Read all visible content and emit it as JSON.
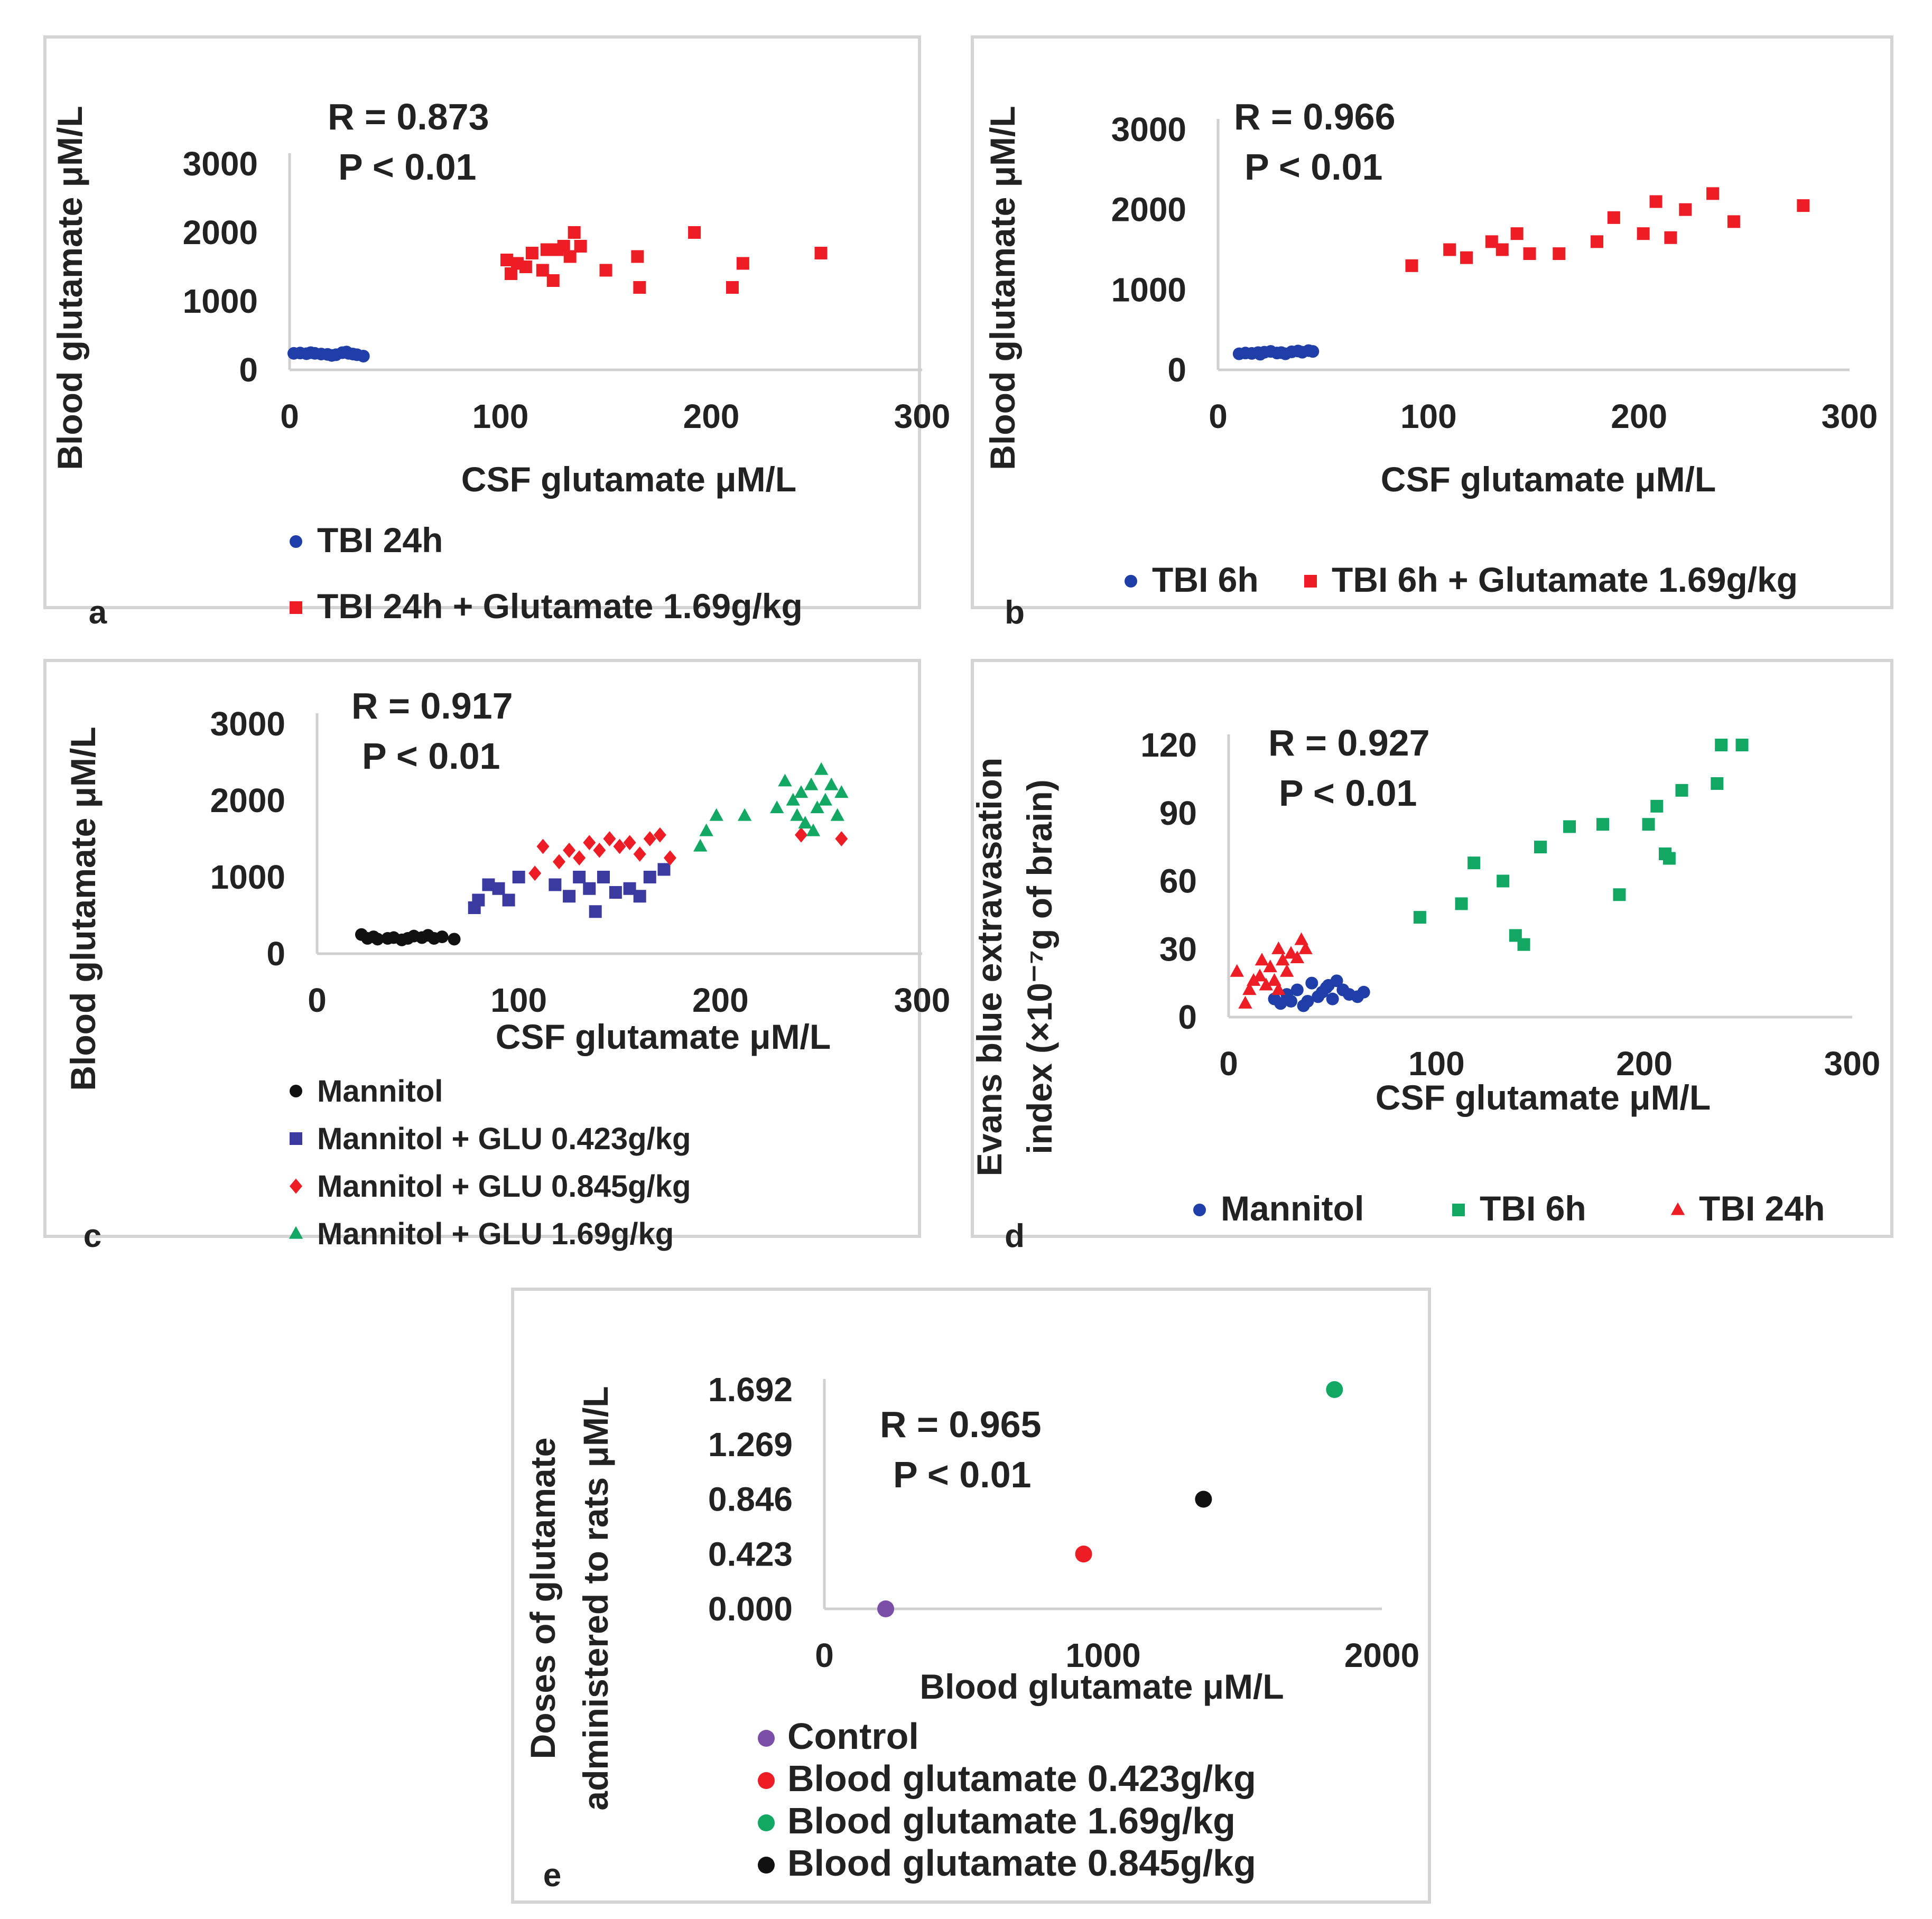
{
  "colors": {
    "blue": "#1f3ea8",
    "red": "#ee1c25",
    "green": "#12a864",
    "black": "#111111",
    "navy": "#3a3aa0",
    "purple": "#7b4fa8"
  },
  "chart_data": [
    {
      "type": "scatter",
      "panel_label": "a",
      "xlabel": "CSF glutamate μM/L",
      "ylabel": "Blood glutamate μM/L",
      "xlim": [
        0,
        300
      ],
      "ylim": [
        0,
        3000
      ],
      "xticks": [
        "0",
        "100",
        "200",
        "300"
      ],
      "yticks": [
        "0",
        "1000",
        "2000",
        "3000"
      ],
      "annotation": [
        "R = 0.873",
        "P < 0.01"
      ],
      "series": [
        {
          "name": "TBI 24h",
          "color": "#1f3ea8",
          "marker": "circle",
          "points": [
            [
              2,
              240
            ],
            [
              5,
              245
            ],
            [
              8,
              235
            ],
            [
              12,
              240
            ],
            [
              15,
              230
            ],
            [
              18,
              225
            ],
            [
              22,
              220
            ],
            [
              25,
              250
            ],
            [
              28,
              240
            ],
            [
              30,
              230
            ],
            [
              32,
              220
            ],
            [
              35,
              200
            ],
            [
              20,
              210
            ],
            [
              10,
              250
            ],
            [
              27,
              260
            ]
          ]
        },
        {
          "name": "TBI 24h + Glutamate 1.69g/kg",
          "color": "#ee1c25",
          "marker": "square",
          "points": [
            [
              103,
              1600
            ],
            [
              105,
              1400
            ],
            [
              108,
              1550
            ],
            [
              112,
              1500
            ],
            [
              115,
              1700
            ],
            [
              120,
              1450
            ],
            [
              122,
              1750
            ],
            [
              125,
              1300
            ],
            [
              127,
              1750
            ],
            [
              130,
              1800
            ],
            [
              133,
              1650
            ],
            [
              135,
              2000
            ],
            [
              138,
              1800
            ],
            [
              150,
              1450
            ],
            [
              165,
              1650
            ],
            [
              166,
              1200
            ],
            [
              192,
              2000
            ],
            [
              210,
              1200
            ],
            [
              215,
              1550
            ],
            [
              252,
              1700
            ]
          ]
        }
      ]
    },
    {
      "type": "scatter",
      "panel_label": "b",
      "xlabel": "CSF glutamate μM/L",
      "ylabel": "Blood glutamate μM/L",
      "xlim": [
        0,
        300
      ],
      "ylim": [
        0,
        3000
      ],
      "xticks": [
        "0",
        "100",
        "200",
        "300"
      ],
      "yticks": [
        "0",
        "1000",
        "2000",
        "3000"
      ],
      "annotation": [
        "R = 0.966",
        "P < 0.01"
      ],
      "series": [
        {
          "name": "TBI 6h",
          "color": "#1f3ea8",
          "marker": "circle",
          "points": [
            [
              10,
              200
            ],
            [
              13,
              210
            ],
            [
              16,
              205
            ],
            [
              19,
              215
            ],
            [
              22,
              220
            ],
            [
              25,
              230
            ],
            [
              28,
              210
            ],
            [
              32,
              200
            ],
            [
              35,
              225
            ],
            [
              38,
              235
            ],
            [
              40,
              220
            ],
            [
              43,
              240
            ],
            [
              45,
              230
            ],
            [
              30,
              215
            ],
            [
              20,
              195
            ]
          ]
        },
        {
          "name": "TBI 6h + Glutamate 1.69g/kg",
          "color": "#ee1c25",
          "marker": "square",
          "points": [
            [
              92,
              1300
            ],
            [
              110,
              1500
            ],
            [
              118,
              1400
            ],
            [
              130,
              1600
            ],
            [
              135,
              1500
            ],
            [
              142,
              1700
            ],
            [
              148,
              1450
            ],
            [
              162,
              1450
            ],
            [
              180,
              1600
            ],
            [
              188,
              1900
            ],
            [
              202,
              1700
            ],
            [
              208,
              2100
            ],
            [
              215,
              1650
            ],
            [
              222,
              2000
            ],
            [
              235,
              2200
            ],
            [
              245,
              1850
            ],
            [
              278,
              2050
            ]
          ]
        }
      ]
    },
    {
      "type": "scatter",
      "panel_label": "c",
      "xlabel": "CSF glutamate μM/L",
      "ylabel": "Blood glutamate μM/L",
      "xlim": [
        0,
        300
      ],
      "ylim": [
        0,
        3000
      ],
      "xticks": [
        "0",
        "100",
        "200",
        "300"
      ],
      "yticks": [
        "0",
        "1000",
        "2000",
        "3000"
      ],
      "annotation": [
        "R = 0.917",
        "P < 0.01"
      ],
      "series": [
        {
          "name": "Mannitol",
          "color": "#111111",
          "marker": "circle",
          "points": [
            [
              22,
              250
            ],
            [
              25,
              200
            ],
            [
              28,
              220
            ],
            [
              30,
              190
            ],
            [
              38,
              210
            ],
            [
              42,
              180
            ],
            [
              45,
              200
            ],
            [
              48,
              230
            ],
            [
              52,
              210
            ],
            [
              55,
              240
            ],
            [
              58,
              200
            ],
            [
              62,
              220
            ],
            [
              68,
              190
            ],
            [
              35,
              200
            ]
          ]
        },
        {
          "name": "Mannitol + GLU 0.423g/kg",
          "color": "#3a3aa0",
          "marker": "square",
          "points": [
            [
              78,
              600
            ],
            [
              80,
              700
            ],
            [
              85,
              900
            ],
            [
              90,
              850
            ],
            [
              95,
              700
            ],
            [
              100,
              1000
            ],
            [
              118,
              900
            ],
            [
              125,
              750
            ],
            [
              130,
              1000
            ],
            [
              135,
              850
            ],
            [
              138,
              550
            ],
            [
              142,
              1000
            ],
            [
              148,
              800
            ],
            [
              155,
              850
            ],
            [
              160,
              750
            ],
            [
              165,
              1000
            ],
            [
              172,
              1100
            ]
          ]
        },
        {
          "name": "Mannitol + GLU 0.845g/kg",
          "color": "#ee1c25",
          "marker": "diamond",
          "points": [
            [
              108,
              1050
            ],
            [
              112,
              1400
            ],
            [
              120,
              1200
            ],
            [
              125,
              1350
            ],
            [
              130,
              1250
            ],
            [
              135,
              1450
            ],
            [
              140,
              1350
            ],
            [
              145,
              1500
            ],
            [
              150,
              1400
            ],
            [
              155,
              1450
            ],
            [
              160,
              1300
            ],
            [
              165,
              1500
            ],
            [
              170,
              1550
            ],
            [
              175,
              1250
            ],
            [
              240,
              1550
            ],
            [
              260,
              1500
            ]
          ]
        },
        {
          "name": "Mannitol + GLU 1.69g/kg",
          "color": "#12a864",
          "marker": "triangle",
          "points": [
            [
              190,
              1400
            ],
            [
              193,
              1600
            ],
            [
              198,
              1800
            ],
            [
              212,
              1800
            ],
            [
              228,
              1900
            ],
            [
              232,
              2250
            ],
            [
              236,
              2000
            ],
            [
              240,
              2100
            ],
            [
              242,
              1700
            ],
            [
              245,
              2200
            ],
            [
              248,
              1900
            ],
            [
              250,
              2400
            ],
            [
              252,
              2000
            ],
            [
              255,
              2200
            ],
            [
              258,
              1800
            ],
            [
              260,
              2100
            ],
            [
              246,
              1600
            ],
            [
              238,
              1800
            ]
          ]
        }
      ]
    },
    {
      "type": "scatter",
      "panel_label": "d",
      "xlabel": "CSF glutamate μM/L",
      "ylabel": [
        "Evans blue extravasation",
        "index (×10⁻⁷g of brain)"
      ],
      "xlim": [
        0,
        300
      ],
      "ylim": [
        0,
        120
      ],
      "xticks": [
        "0",
        "100",
        "200",
        "300"
      ],
      "yticks": [
        "0",
        "30",
        "60",
        "90",
        "120"
      ],
      "annotation": [
        "R = 0.927",
        "P < 0.01"
      ],
      "series": [
        {
          "name": "Mannitol",
          "color": "#1f3ea8",
          "marker": "circle",
          "points": [
            [
              22,
              8
            ],
            [
              25,
              6
            ],
            [
              28,
              10
            ],
            [
              30,
              7
            ],
            [
              33,
              12
            ],
            [
              36,
              5
            ],
            [
              40,
              15
            ],
            [
              43,
              9
            ],
            [
              45,
              11
            ],
            [
              48,
              14
            ],
            [
              50,
              8
            ],
            [
              52,
              16
            ],
            [
              55,
              12
            ],
            [
              58,
              10
            ],
            [
              62,
              9
            ],
            [
              65,
              11
            ],
            [
              47,
              13
            ],
            [
              38,
              7
            ]
          ]
        },
        {
          "name": "TBI 6h",
          "color": "#12a864",
          "marker": "square",
          "points": [
            [
              92,
              44
            ],
            [
              112,
              50
            ],
            [
              118,
              68
            ],
            [
              132,
              60
            ],
            [
              138,
              36
            ],
            [
              142,
              32
            ],
            [
              150,
              75
            ],
            [
              164,
              84
            ],
            [
              180,
              85
            ],
            [
              188,
              54
            ],
            [
              202,
              85
            ],
            [
              206,
              93
            ],
            [
              210,
              72
            ],
            [
              212,
              70
            ],
            [
              218,
              100
            ],
            [
              235,
              103
            ],
            [
              237,
              120
            ],
            [
              247,
              120
            ]
          ]
        },
        {
          "name": "TBI 24h",
          "color": "#ee1c25",
          "marker": "triangle",
          "points": [
            [
              4,
              20
            ],
            [
              8,
              6
            ],
            [
              10,
              12
            ],
            [
              12,
              16
            ],
            [
              15,
              18
            ],
            [
              18,
              14
            ],
            [
              20,
              22
            ],
            [
              22,
              16
            ],
            [
              24,
              12
            ],
            [
              26,
              25
            ],
            [
              28,
              20
            ],
            [
              30,
              28
            ],
            [
              33,
              26
            ],
            [
              35,
              34
            ],
            [
              37,
              30
            ],
            [
              16,
              25
            ],
            [
              24,
              30
            ]
          ]
        }
      ]
    },
    {
      "type": "scatter",
      "panel_label": "e",
      "xlabel": "Blood glutamate μM/L",
      "ylabel": [
        "Doses of glutamate",
        "administered to rats μM/L"
      ],
      "xlim": [
        0,
        2000
      ],
      "ylim": [
        0,
        1.692
      ],
      "xticks": [
        "0",
        "1000",
        "2000"
      ],
      "yticks": [
        "0.000",
        "0.423",
        "0.846",
        "1.269",
        "1.692"
      ],
      "annotation": [
        "R = 0.965",
        "P < 0.01"
      ],
      "series": [
        {
          "name": "Control",
          "color": "#7b4fa8",
          "marker": "circle",
          "points": [
            [
              220,
              0.0
            ]
          ]
        },
        {
          "name": "Blood glutamate 0.423g/kg",
          "color": "#ee1c25",
          "marker": "circle",
          "points": [
            [
              930,
              0.423
            ]
          ]
        },
        {
          "name": "Blood glutamate 1.69g/kg",
          "color": "#12a864",
          "marker": "circle",
          "points": [
            [
              1830,
              1.692
            ]
          ]
        },
        {
          "name": "Blood glutamate 0.845g/kg",
          "color": "#111111",
          "marker": "circle",
          "points": [
            [
              1360,
              0.846
            ]
          ]
        }
      ]
    }
  ]
}
